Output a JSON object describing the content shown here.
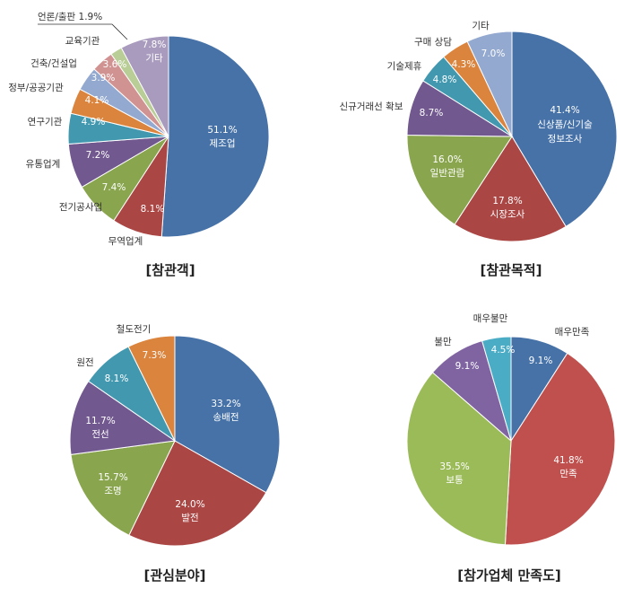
{
  "chart_data": [
    {
      "type": "pie",
      "title": "[참관객]",
      "slices": [
        {
          "name": "제조업",
          "value": 51.1,
          "label": "51.1%",
          "color": "#4672a8"
        },
        {
          "name": "무역업계",
          "value": 8.1,
          "label": "8.1%",
          "color": "#aa4644"
        },
        {
          "name": "전기공사업",
          "value": 7.4,
          "label": "7.4%",
          "color": "#89a54e"
        },
        {
          "name": "유통업계",
          "value": 7.2,
          "label": "7.2%",
          "color": "#71588f"
        },
        {
          "name": "연구기관",
          "value": 4.9,
          "label": "4.9%",
          "color": "#4298af"
        },
        {
          "name": "정부/공공기관",
          "value": 4.1,
          "label": "4.1%",
          "color": "#db843d"
        },
        {
          "name": "건축/건설업",
          "value": 3.9,
          "label": "3.9%",
          "color": "#93a9cf"
        },
        {
          "name": "교육기관",
          "value": 3.6,
          "label": "3.6%",
          "color": "#d19392"
        },
        {
          "name": "언론/출판",
          "value": 1.9,
          "label": "1.9%",
          "color": "#b9cd96"
        },
        {
          "name": "기타",
          "value": 7.8,
          "label": "7.8%",
          "color": "#a99bbd"
        }
      ]
    },
    {
      "type": "pie",
      "title": "[참관목적]",
      "slices": [
        {
          "name": "신상품/신기술 정보조사",
          "value": 41.4,
          "label": "41.4%",
          "color": "#4672a8"
        },
        {
          "name": "시장조사",
          "value": 17.8,
          "label": "17.8%",
          "color": "#aa4644"
        },
        {
          "name": "일반관람",
          "value": 16.0,
          "label": "16.0%",
          "color": "#89a54e"
        },
        {
          "name": "신규거래선 확보",
          "value": 8.7,
          "label": "8.7%",
          "color": "#71588f"
        },
        {
          "name": "기술제휴",
          "value": 4.8,
          "label": "4.8%",
          "color": "#4298af"
        },
        {
          "name": "구매 상담",
          "value": 4.3,
          "label": "4.3%",
          "color": "#db843d"
        },
        {
          "name": "기타",
          "value": 7.0,
          "label": "7.0%",
          "color": "#93a9cf"
        }
      ]
    },
    {
      "type": "pie",
      "title": "[관심분야]",
      "slices": [
        {
          "name": "송배전",
          "value": 33.2,
          "label": "33.2%",
          "color": "#4672a8"
        },
        {
          "name": "발전",
          "value": 24.0,
          "label": "24.0%",
          "color": "#aa4644"
        },
        {
          "name": "조명",
          "value": 15.7,
          "label": "15.7%",
          "color": "#89a54e"
        },
        {
          "name": "전선",
          "value": 11.7,
          "label": "11.7%",
          "color": "#71588f"
        },
        {
          "name": "원전",
          "value": 8.1,
          "label": "8.1%",
          "color": "#4298af"
        },
        {
          "name": "철도전기",
          "value": 7.3,
          "label": "7.3%",
          "color": "#db843d"
        }
      ]
    },
    {
      "type": "pie",
      "title": "[참가업체 만족도]",
      "slices": [
        {
          "name": "매우만족",
          "value": 9.1,
          "label": "9.1%",
          "color": "#4672a8"
        },
        {
          "name": "만족",
          "value": 41.8,
          "label": "41.8%",
          "color": "#c0504d"
        },
        {
          "name": "보통",
          "value": 35.5,
          "label": "35.5%",
          "color": "#9bbb59"
        },
        {
          "name": "불만",
          "value": 9.1,
          "label": "9.1%",
          "color": "#8064a2"
        },
        {
          "name": "매우불만",
          "value": 4.5,
          "label": "4.5%",
          "color": "#4bacc6"
        }
      ]
    }
  ]
}
